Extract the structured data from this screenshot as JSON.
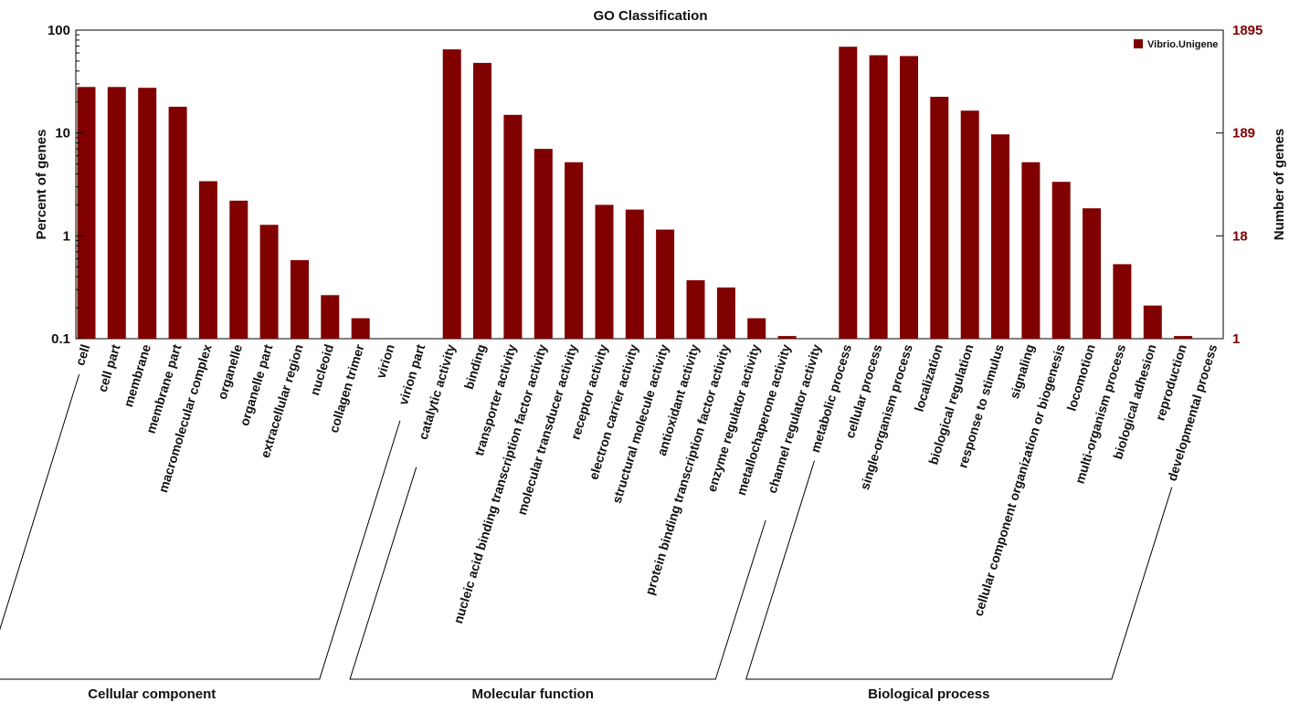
{
  "colors": {
    "bar": "#800000",
    "right_axis": "#800000",
    "axis": "#000000"
  },
  "chart_data": {
    "type": "bar",
    "title": "GO Classification",
    "ylabel": "Percent of genes",
    "y2label": "Number of genes",
    "yscale": "log",
    "ylim": [
      0.1,
      100
    ],
    "yticks": [
      "0.1",
      "1",
      "10",
      "100"
    ],
    "y2ticks": [
      "1",
      "18",
      "189",
      "1895"
    ],
    "legend": {
      "position": "top-right",
      "entries": [
        "Vibrio.Unigene"
      ]
    },
    "series": [
      {
        "name": "Vibrio.Unigene",
        "values": [
          28,
          28,
          27.5,
          18,
          3.4,
          2.2,
          1.28,
          0.58,
          0.265,
          0.158,
          0,
          0,
          65,
          48,
          15,
          7,
          5.2,
          2.0,
          1.8,
          1.15,
          0.37,
          0.315,
          0.158,
          0.106,
          0,
          69,
          57,
          56,
          22.5,
          16.5,
          9.7,
          5.2,
          3.35,
          1.85,
          0.53,
          0.21,
          0.106,
          0
        ]
      }
    ],
    "categories": [
      "cell",
      "cell part",
      "membrane",
      "membrane part",
      "macromolecular complex",
      "organelle",
      "organelle part",
      "extracellular region",
      "nucleoid",
      "collagen trimer",
      "virion",
      "virion part",
      "catalytic activity",
      "binding",
      "transporter activity",
      "nucleic acid binding transcription factor activity",
      "molecular transducer activity",
      "receptor activity",
      "electron carrier activity",
      "structural molecule activity",
      "antioxidant activity",
      "protein binding transcription factor activity",
      "enzyme regulator activity",
      "metallochaperone activity",
      "channel regulator activity",
      "metabolic process",
      "cellular process",
      "single-organism process",
      "localization",
      "biological regulation",
      "response to stimulus",
      "signaling",
      "cellular component organization or biogenesis",
      "locomotion",
      "multi-organism process",
      "biological adhesion",
      "reproduction",
      "developmental process"
    ],
    "groups": [
      {
        "label": "Cellular component",
        "start": 0,
        "end": 11
      },
      {
        "label": "Molecular function",
        "start": 12,
        "end": 24
      },
      {
        "label": "Biological process",
        "start": 25,
        "end": 37
      }
    ]
  }
}
